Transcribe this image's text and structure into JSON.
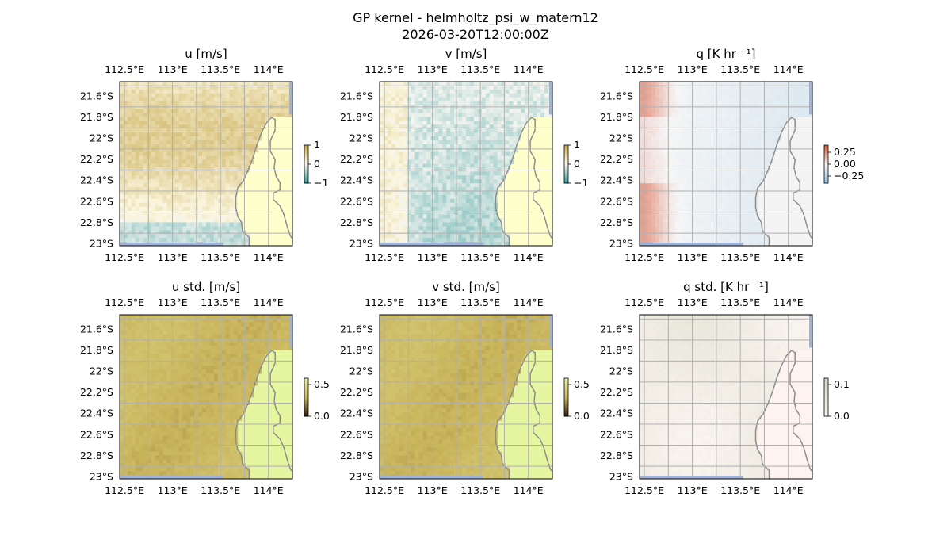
{
  "figure": {
    "title_line1": "GP kernel - helmholtz_psi_w_matern12",
    "title_line2": "2026-03-20T12:00:00Z"
  },
  "chart_data": [
    {
      "type": "heatmap",
      "id": "u",
      "title": "u [m/s]",
      "colormap": "diverging brown-white-teal",
      "clim": [
        -1,
        1
      ],
      "colorbar_ticks": [
        "1",
        "0",
        "−1"
      ],
      "colorbar_values": [
        1,
        0,
        -1
      ],
      "field_description_values": {
        "typical_offshore": 0.3,
        "range_seen": [
          -0.3,
          0.6
        ]
      }
    },
    {
      "type": "heatmap",
      "id": "v",
      "title": "v [m/s]",
      "colormap": "diverging brown-white-teal",
      "clim": [
        -1,
        1
      ],
      "colorbar_ticks": [
        "1",
        "0",
        "−1"
      ],
      "colorbar_values": [
        1,
        0,
        -1
      ],
      "field_description_values": {
        "typical_offshore": -0.1,
        "range_seen": [
          -0.6,
          0.3
        ]
      }
    },
    {
      "type": "heatmap",
      "id": "q",
      "title": "q [K hr ⁻¹]",
      "colormap": "diverging blue-white-red",
      "clim": [
        -0.4,
        0.4
      ],
      "colorbar_ticks": [
        "0.25",
        "0.00",
        "−0.25"
      ],
      "colorbar_values": [
        0.25,
        0.0,
        -0.25
      ],
      "field_description_values": {
        "west_edge_max": 0.2,
        "east_min": -0.12
      }
    },
    {
      "type": "heatmap",
      "id": "u_std",
      "title": "u std. [m/s]",
      "colormap": "sequential",
      "clim": [
        0,
        0.6
      ],
      "colorbar_ticks": [
        "0.5",
        "0.0"
      ],
      "colorbar_values": [
        0.5,
        0.0
      ],
      "field_description_values": {
        "ocean": 0.45,
        "land": 0.2
      }
    },
    {
      "type": "heatmap",
      "id": "v_std",
      "title": "v std. [m/s]",
      "colormap": "sequential",
      "clim": [
        0,
        0.6
      ],
      "colorbar_ticks": [
        "0.5",
        "0.0"
      ],
      "colorbar_values": [
        0.5,
        0.0
      ],
      "field_description_values": {
        "ocean": 0.45,
        "land": 0.2
      }
    },
    {
      "type": "heatmap",
      "id": "q_std",
      "title": "q std. [K hr ⁻¹]",
      "colormap": "sequential",
      "clim": [
        0,
        0.12
      ],
      "colorbar_ticks": [
        "0.1",
        "0.0"
      ],
      "colorbar_values": [
        0.1,
        0.0
      ],
      "field_description_values": {
        "ocean": 0.02,
        "land": 0.01
      }
    }
  ],
  "axes": {
    "x_ticks": [
      112.5,
      113,
      113.5,
      114
    ],
    "x_tick_labels": [
      "112.5°E",
      "113°E",
      "113.5°E",
      "114°E"
    ],
    "y_ticks": [
      -21.6,
      -21.8,
      -22,
      -22.2,
      -22.4,
      -22.6,
      -22.8,
      -23
    ],
    "y_tick_labels": [
      "21.6°S",
      "21.8°S",
      "22°S",
      "22.2°S",
      "22.4°S",
      "22.6°S",
      "22.8°S",
      "23°S"
    ],
    "xlim": [
      112.45,
      114.25
    ],
    "ylim": [
      -23.02,
      -21.46
    ],
    "grid": true
  },
  "colors": {
    "grid": "#b0b0b0",
    "coast": "#8c8c8c",
    "land_u_v": "#ffffcc",
    "land_q": "#f4f4f4",
    "land_u_std": "#e6f5a0",
    "land_q_std": "#fff3f0",
    "sea_edge": "#9fb3d9"
  }
}
